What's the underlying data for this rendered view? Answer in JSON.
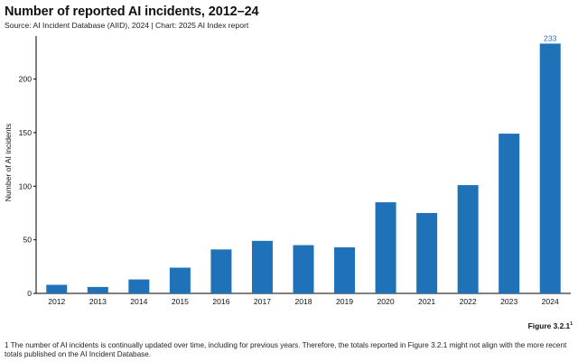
{
  "colors": {
    "bar": "#1f72b8",
    "axis": "#000000",
    "label": "#1f72b8"
  },
  "chart_data": {
    "type": "bar",
    "title": "Number of reported AI incidents, 2012–24",
    "source": "Source: AI Incident Database (AIID), 2024 | Chart: 2025 AI Index report",
    "xlabel": "",
    "ylabel": "Number of AI incidents",
    "categories": [
      "2012",
      "2013",
      "2014",
      "2015",
      "2016",
      "2017",
      "2018",
      "2019",
      "2020",
      "2021",
      "2022",
      "2023",
      "2024"
    ],
    "values": [
      8,
      6,
      13,
      24,
      41,
      49,
      45,
      43,
      85,
      75,
      101,
      149,
      233
    ],
    "ylim": [
      0,
      240
    ],
    "yticks": [
      0,
      50,
      100,
      150,
      200
    ],
    "data_labels": [
      {
        "index": 12,
        "text": "233"
      }
    ],
    "grid": false
  },
  "figure_label": "Figure 3.2.1",
  "figure_label_sup": "1",
  "footnote": "1 The number of AI incidents is continually updated over time, including for previous years. Therefore, the totals reported in Figure 3.2.1 might not align with the more recent totals published on the AI Incident Database."
}
